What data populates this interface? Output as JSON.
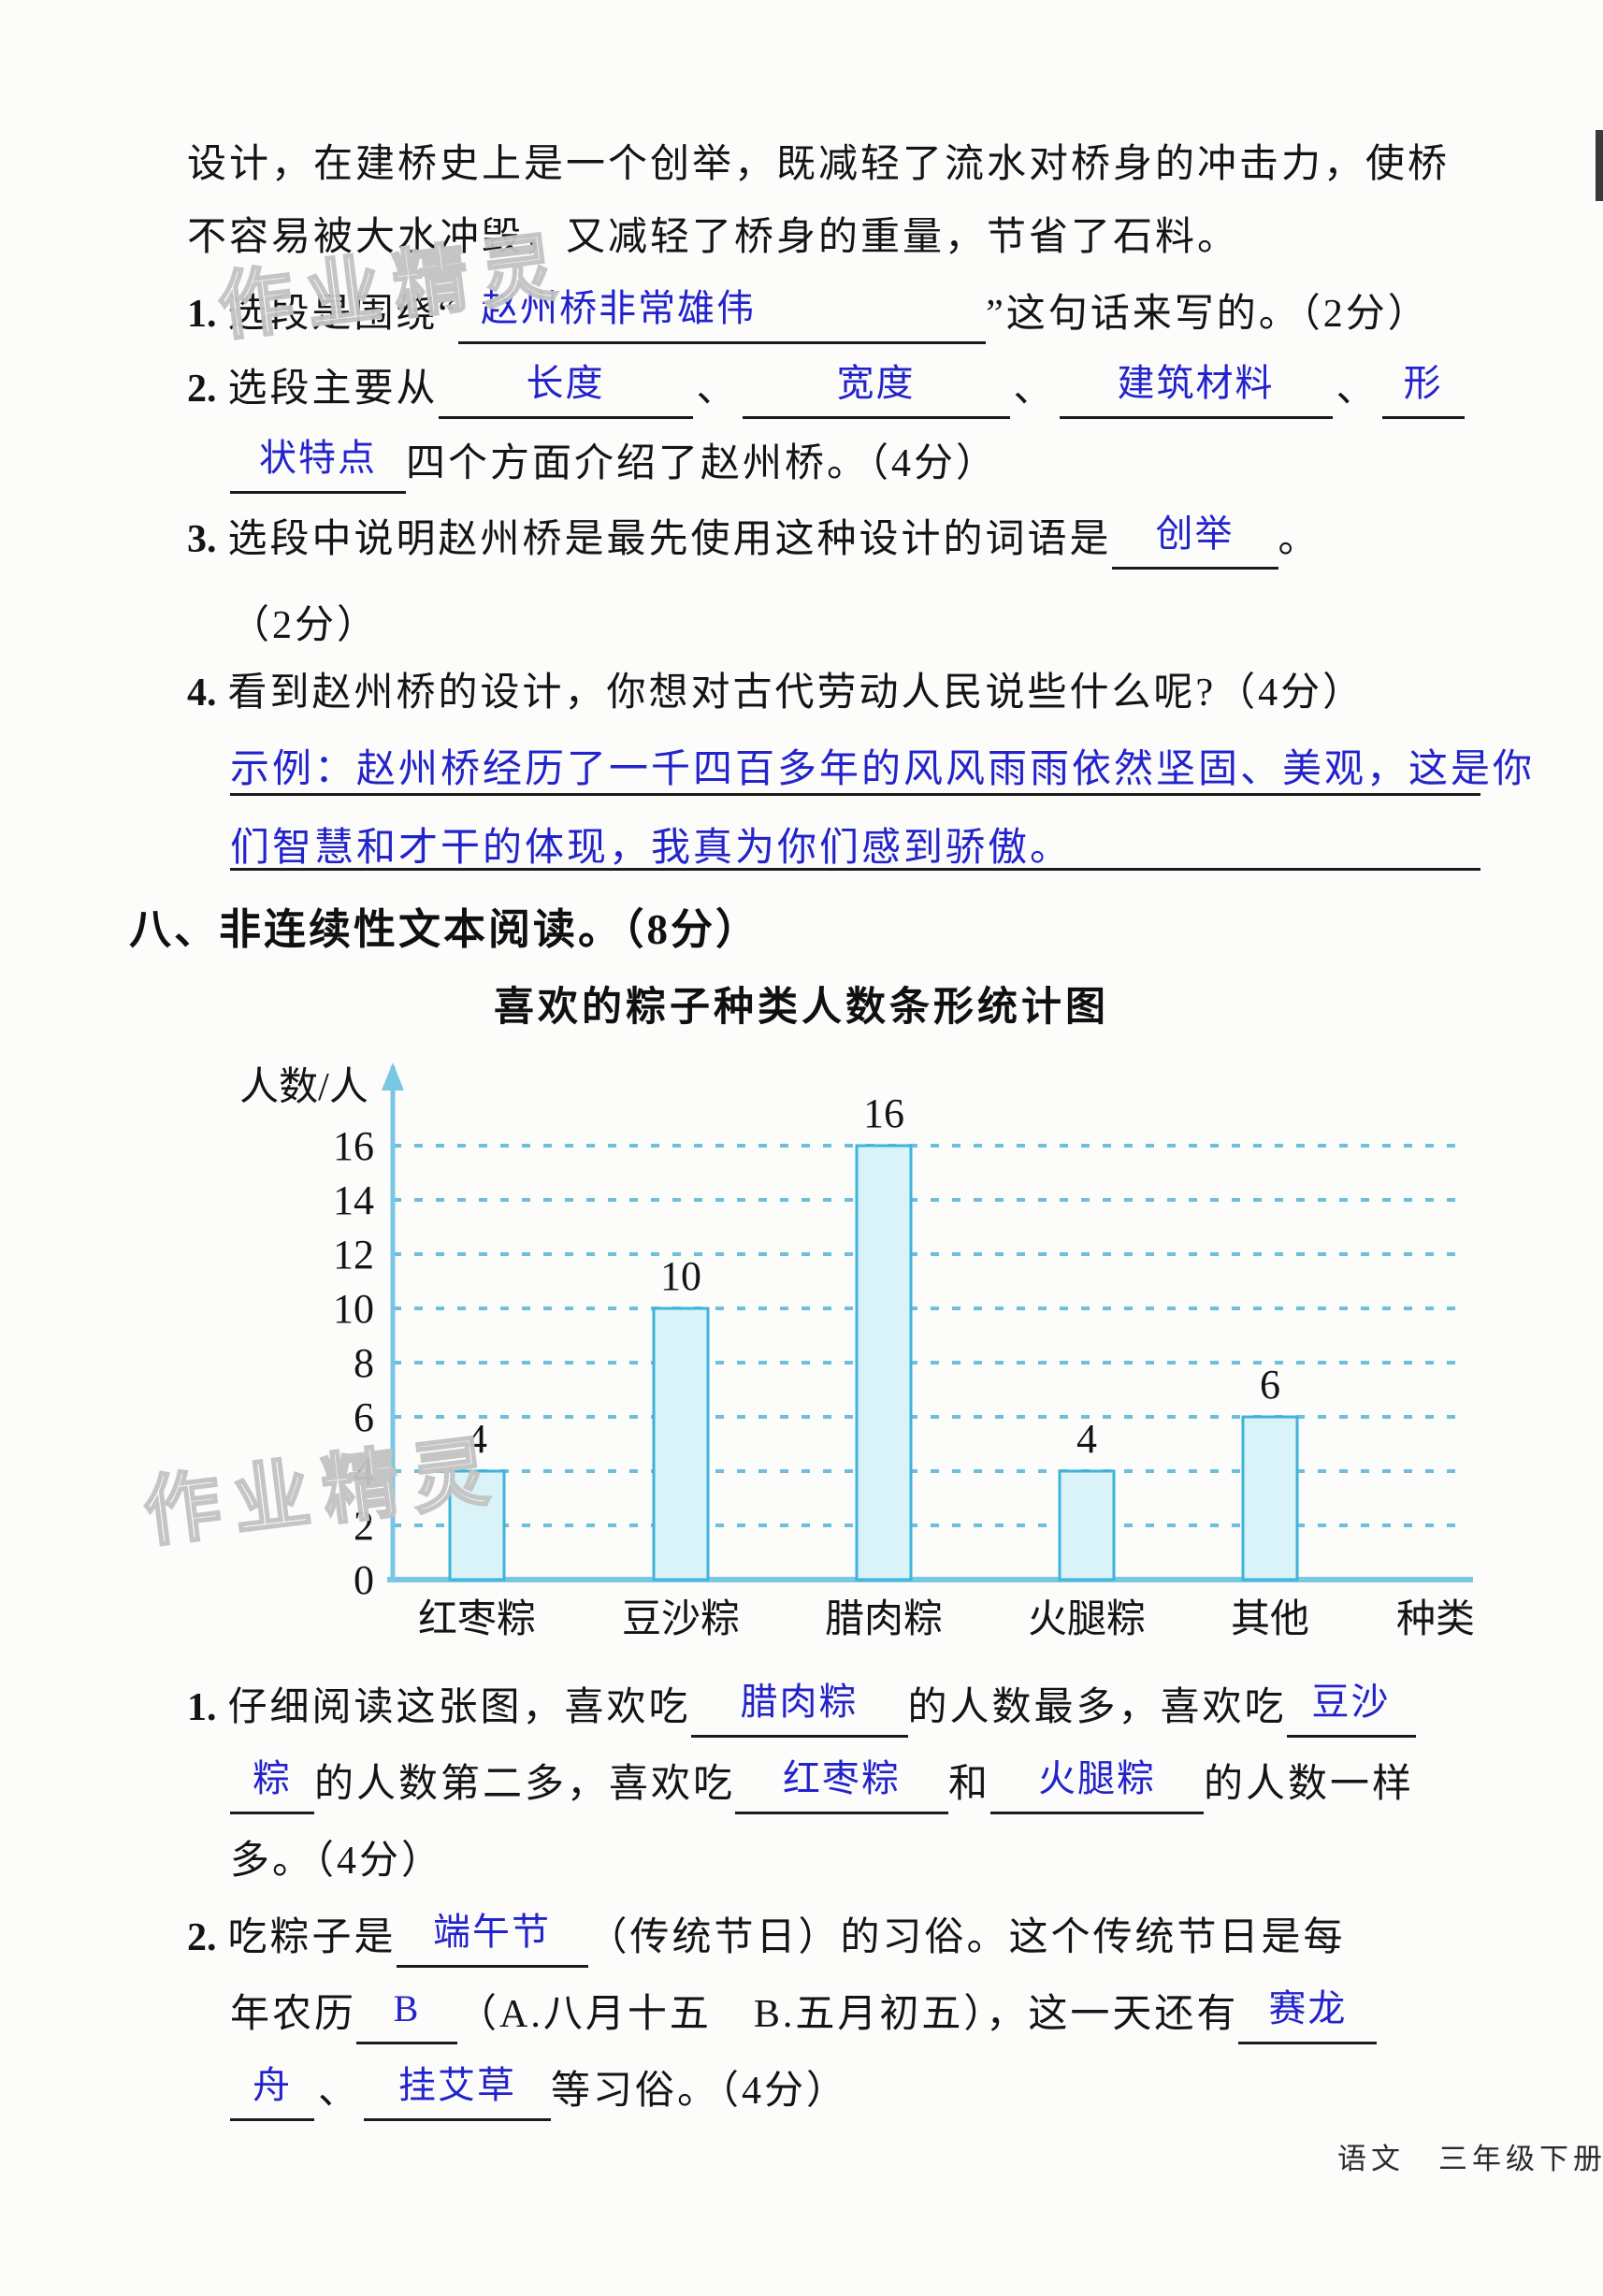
{
  "page": {
    "watermark": "作业精灵",
    "footer": "语文　三年级下册"
  },
  "passage": {
    "line1": "设计，在建桥史上是一个创举，既减轻了流水对桥身的冲击力，使桥",
    "line2": "不容易被大水冲毁，又减轻了桥身的重量，节省了石料。"
  },
  "q1": {
    "num": "1.",
    "pre": "选段是围绕“",
    "ans": "赵州桥非常雄伟",
    "post": "”这句话来写的。（2分）"
  },
  "q2": {
    "num": "2.",
    "pre": "选段主要从",
    "sep": "、",
    "ans1": "长度",
    "ans2": "宽度",
    "ans3": "建筑材料",
    "ans4a": "形",
    "ans4b": "状特点",
    "post": "四个方面介绍了赵州桥。（4分）"
  },
  "q3": {
    "num": "3.",
    "pre": "选段中说明赵州桥是最先使用这种设计的词语是",
    "ans": "创举",
    "post": "。",
    "score": "（2分）"
  },
  "q4": {
    "num": "4.",
    "text": "看到赵州桥的设计，你想对古代劳动人民说些什么呢?（4分）",
    "ans_line1": "示例：赵州桥经历了一千四百多年的风风雨雨依然坚固、美观，这是你",
    "ans_line2": "们智慧和才干的体现，我真为你们感到骄傲。"
  },
  "section8": {
    "heading": "八、非连续性文本阅读。（8分）"
  },
  "chart_data": {
    "type": "bar",
    "title": "喜欢的粽子种类人数条形统计图",
    "ylabel": "人数/人",
    "xlabel": "种类",
    "categories": [
      "红枣粽",
      "豆沙粽",
      "腊肉粽",
      "火腿粽",
      "其他"
    ],
    "values": [
      4,
      10,
      16,
      4,
      6
    ],
    "ylim": [
      0,
      16
    ],
    "ytick_step": 2,
    "grid": "dashed",
    "legend": "none",
    "bar_fill": "#d9f3f9",
    "bar_stroke": "#3fb3d9",
    "axis_color": "#79c7e2",
    "grid_color": "#6fbede"
  },
  "cq1": {
    "num": "1.",
    "pre": "仔细阅读这张图，喜欢吃",
    "ans1": "腊肉粽",
    "mid1": "的人数最多，喜欢吃",
    "ans2a": "豆沙",
    "ans2b": "粽",
    "mid2": "的人数第二多，喜欢吃",
    "ans3": "红枣粽",
    "mid3": "和",
    "ans4": "火腿粽",
    "post": "的人数一样",
    "tail": "多。（4分）"
  },
  "cq2": {
    "num": "2.",
    "pre": "吃粽子是",
    "ans1": "端午节",
    "mid1": "（传统节日）的习俗。这个传统节日是每",
    "line2_pre": "年农历",
    "ans2": "B",
    "mid2": "（A.八月十五　B.五月初五），这一天还有",
    "ans3a": "赛龙",
    "ans3b": "舟",
    "sep": "、",
    "ans4": "挂艾草",
    "post": "等习俗。（4分）"
  }
}
